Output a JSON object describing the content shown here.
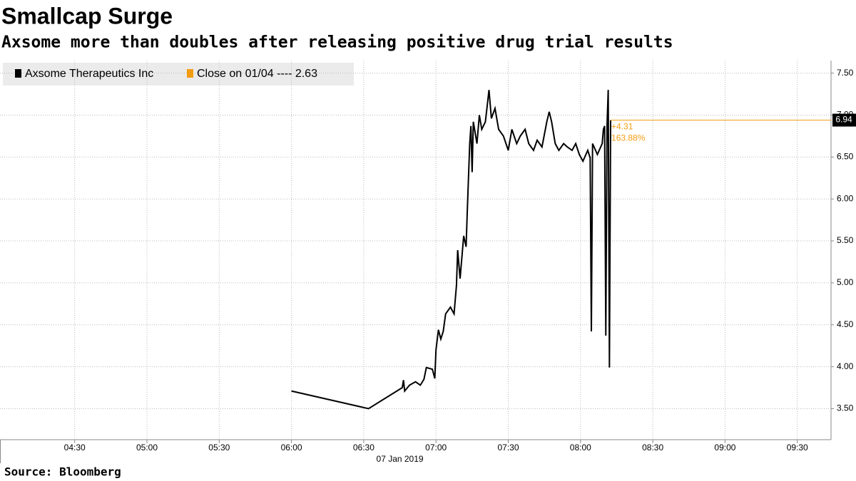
{
  "chart_data": {
    "type": "line",
    "title": "Smallcap Surge",
    "subtitle": "Axsome more than doubles after releasing positive drug trial results",
    "source": "Source: Bloomberg",
    "x_date_label": "07 Jan 2019",
    "series": [
      {
        "name": "Axsome Therapeutics Inc",
        "color": "#000000",
        "x": [
          360,
          392,
          406,
          406.5,
          407,
          409,
          411.5,
          413.5,
          415,
          416,
          418.5,
          419.5,
          420,
          421,
          422,
          423,
          424,
          426,
          427.5,
          428.5,
          429,
          430,
          431.5,
          432.5,
          433,
          434,
          434.5,
          435,
          435.5,
          437,
          438,
          439,
          440.5,
          441.5,
          442,
          443,
          444.5,
          446,
          448,
          450,
          451.5,
          453.5,
          455,
          457,
          458.5,
          460.5,
          462,
          464,
          466,
          467,
          468,
          469.5,
          471,
          473,
          474.5,
          476.5,
          478,
          479.5,
          481,
          483,
          484,
          484.5,
          485,
          487,
          489,
          489.5,
          490,
          490.5,
          491,
          491.5,
          492,
          492.5
        ],
        "values": [
          3.71,
          3.5,
          3.75,
          3.84,
          3.71,
          3.78,
          3.82,
          3.78,
          3.85,
          3.99,
          3.97,
          3.86,
          4.2,
          4.44,
          4.33,
          4.42,
          4.63,
          4.71,
          4.63,
          4.97,
          5.39,
          5.05,
          5.56,
          5.43,
          5.86,
          6.66,
          6.87,
          6.32,
          6.92,
          6.66,
          7.0,
          6.83,
          6.92,
          7.17,
          7.3,
          6.96,
          7.08,
          6.83,
          6.75,
          6.58,
          6.83,
          6.66,
          6.75,
          6.83,
          6.66,
          6.58,
          6.7,
          6.62,
          6.92,
          7.04,
          6.92,
          6.66,
          6.58,
          6.66,
          6.62,
          6.58,
          6.66,
          6.53,
          6.45,
          6.58,
          6.49,
          4.42,
          6.66,
          6.53,
          6.66,
          6.83,
          6.87,
          4.37,
          6.87,
          7.3,
          3.99,
          6.94
        ]
      }
    ],
    "reference": {
      "label": "Close on 01/04 ---- 2.63",
      "color": "#f39c12"
    },
    "last_value": {
      "value": 6.94,
      "label": "6.94"
    },
    "annotations": [
      "+4.31",
      "163.88%"
    ],
    "xlim": [
      239,
      584
    ],
    "xticks": [
      {
        "value": 270,
        "label": "04:30"
      },
      {
        "value": 300,
        "label": "05:00"
      },
      {
        "value": 330,
        "label": "05:30"
      },
      {
        "value": 360,
        "label": "06:00"
      },
      {
        "value": 390,
        "label": "06:30"
      },
      {
        "value": 420,
        "label": "07:00"
      },
      {
        "value": 450,
        "label": "07:30"
      },
      {
        "value": 480,
        "label": "08:00"
      },
      {
        "value": 510,
        "label": "08:30"
      },
      {
        "value": 540,
        "label": "09:00"
      },
      {
        "value": 570,
        "label": "09:30"
      }
    ],
    "ylim": [
      3.13,
      7.65
    ],
    "yticks": [
      {
        "value": 3.5,
        "label": "3.50"
      },
      {
        "value": 4,
        "label": "4.00"
      },
      {
        "value": 4.5,
        "label": "4.50"
      },
      {
        "value": 5,
        "label": "5.00"
      },
      {
        "value": 5.5,
        "label": "5.50"
      },
      {
        "value": 6,
        "label": "6.00"
      },
      {
        "value": 6.5,
        "label": "6.50"
      },
      {
        "value": 7,
        "label": "7.00"
      },
      {
        "value": 7.5,
        "label": "7.50"
      }
    ],
    "grid": true
  }
}
